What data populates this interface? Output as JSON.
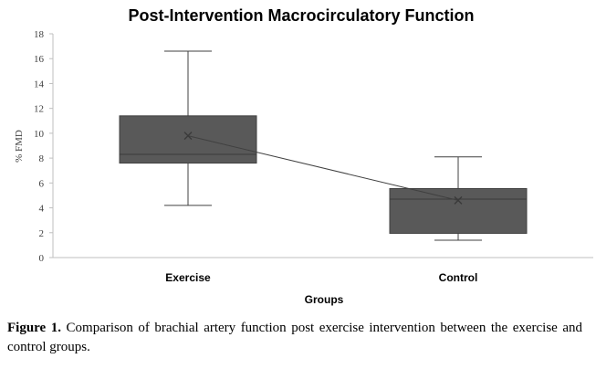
{
  "chart_data": {
    "type": "box",
    "title": "Post-Intervention Macrocirculatory Function",
    "xlabel": "Groups",
    "ylabel": "% FMD",
    "ylim": [
      0,
      18
    ],
    "yticks": [
      0,
      2,
      4,
      6,
      8,
      10,
      12,
      14,
      16,
      18
    ],
    "grid": false,
    "categories": [
      "Exercise",
      "Control"
    ],
    "boxes": [
      {
        "category": "Exercise",
        "min": 4.2,
        "q1": 7.6,
        "median": 8.3,
        "q3": 11.4,
        "max": 16.6,
        "mean": 9.8
      },
      {
        "category": "Control",
        "min": 1.4,
        "q1": 1.95,
        "median": 4.7,
        "q3": 5.55,
        "max": 8.1,
        "mean": 4.6
      }
    ],
    "mean_line": true,
    "box_color": "#595959",
    "line_color": "#404040"
  },
  "caption": {
    "label": "Figure 1.",
    "text": " Comparison of brachial artery function post exercise intervention between the exercise and control groups."
  }
}
